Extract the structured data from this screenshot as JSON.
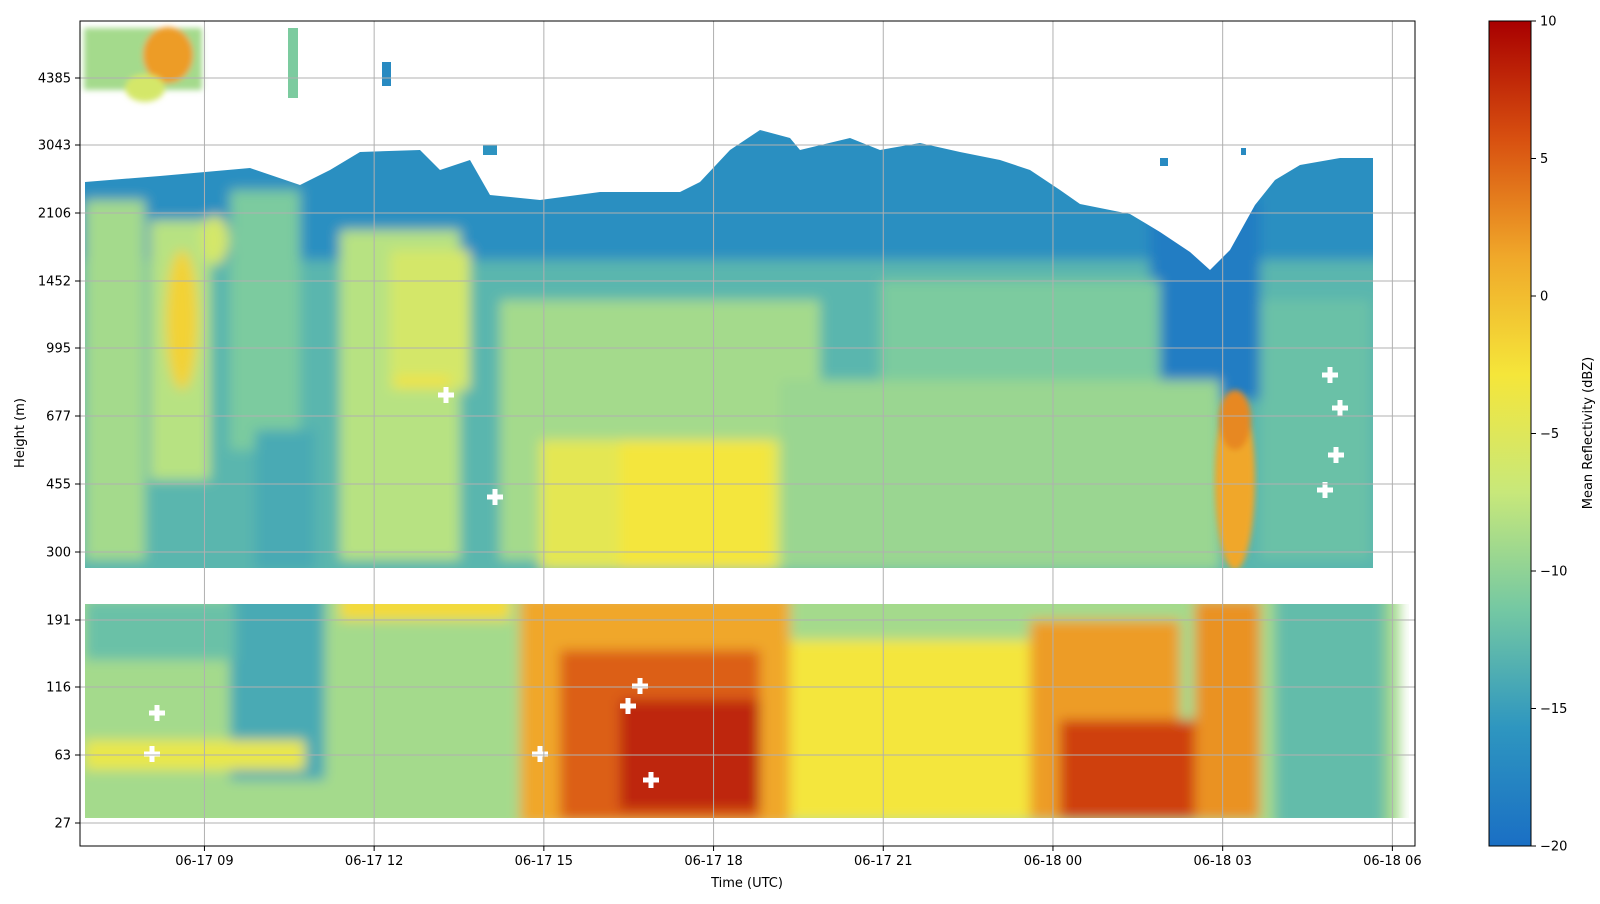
{
  "chart_data": {
    "type": "heatmap",
    "title": "",
    "xlabel": "Time (UTC)",
    "ylabel": "Height (m)",
    "x_ticks": [
      "06-17 09",
      "06-17 12",
      "06-17 15",
      "06-17 18",
      "06-17 21",
      "06-18 00",
      "06-18 03",
      "06-18 06"
    ],
    "x_tick_hours": [
      9,
      12,
      15,
      18,
      21,
      24,
      27,
      30
    ],
    "xlim_hours": [
      6.8,
      30.4
    ],
    "y_ticks": [
      "27",
      "63",
      "116",
      "191",
      "300",
      "455",
      "677",
      "995",
      "1452",
      "2106",
      "3043",
      "4385"
    ],
    "y_tick_values": [
      27,
      63,
      116,
      191,
      300,
      455,
      677,
      995,
      1452,
      2106,
      3043,
      4385
    ],
    "ylim_m": [
      24,
      6300
    ],
    "y_scale": "nonlinear (ticks evenly spaced)",
    "grid": true,
    "colorbar": {
      "label": "Mean Reflectivity (dBZ)",
      "ticks": [
        "10",
        "5",
        "0",
        "−5",
        "−10",
        "−15",
        "−20"
      ],
      "tick_values": [
        10,
        5,
        0,
        -5,
        -10,
        -15,
        -20
      ],
      "vmin": -20,
      "vmax": 10,
      "colormap": [
        "#1a6fc4",
        "#2e96c0",
        "#74c8a3",
        "#c8e87a",
        "#f5e63a",
        "#f0a82a",
        "#d85010",
        "#a80000"
      ]
    },
    "data_extent_hours": [
      7.0,
      30.3
    ],
    "data_gap_height_m": [
      235,
      265
    ],
    "approx_features": [
      {
        "feature": "mid-level cloud layer top",
        "time_range": "06-17 07 to 06-18 06",
        "top_height_m": 2500,
        "dbz_range": [
          -18,
          -12
        ]
      },
      {
        "feature": "upper-level cloud",
        "time_range": "06-17 07 to 06-17 09",
        "height_range_m": [
          4300,
          6000
        ],
        "dbz_max": 2
      },
      {
        "feature": "near-surface echo maximum",
        "time_range": "06-17 15 to 06-18 03",
        "height_range_m": [
          30,
          260
        ],
        "dbz_max": 8
      },
      {
        "feature": "convective column",
        "time": "06-18 04",
        "height_range_m": [
          30,
          800
        ],
        "dbz_max": 4
      }
    ],
    "marker_symbol": "+",
    "marker_color": "#ffffff"
  }
}
